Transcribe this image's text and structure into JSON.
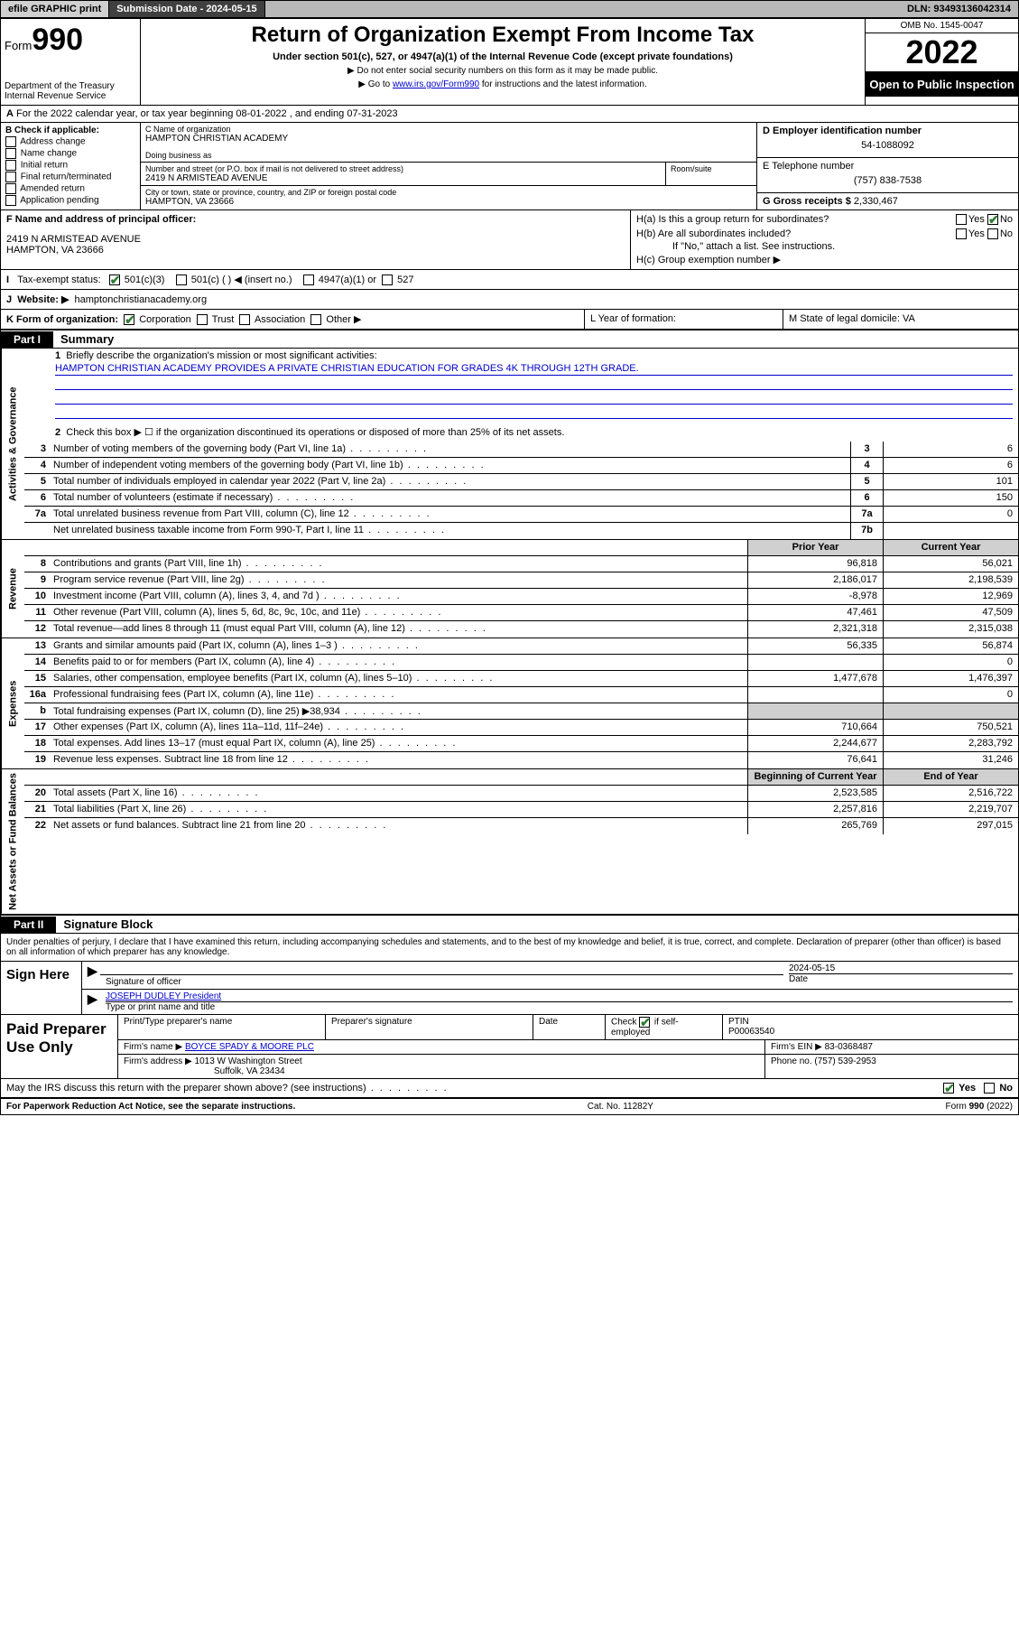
{
  "topbar": {
    "efile": "efile GRAPHIC print",
    "submission_label": "Submission Date - 2024-05-15",
    "dln": "DLN: 93493136042314"
  },
  "header": {
    "form_prefix": "Form",
    "form_number": "990",
    "dept": "Department of the Treasury",
    "irs": "Internal Revenue Service",
    "title": "Return of Organization Exempt From Income Tax",
    "subtitle": "Under section 501(c), 527, or 4947(a)(1) of the Internal Revenue Code (except private foundations)",
    "note1": "▶ Do not enter social security numbers on this form as it may be made public.",
    "note2_pre": "▶ Go to ",
    "note2_link": "www.irs.gov/Form990",
    "note2_post": " for instructions and the latest information.",
    "omb": "OMB No. 1545-0047",
    "tax_year": "2022",
    "open": "Open to Public Inspection"
  },
  "line_a": "For the 2022 calendar year, or tax year beginning 08-01-2022    , and ending 07-31-2023",
  "col_b": {
    "title": "B Check if applicable:",
    "opts": [
      "Address change",
      "Name change",
      "Initial return",
      "Final return/terminated",
      "Amended return",
      "Application pending"
    ]
  },
  "col_c": {
    "name_label": "C Name of organization",
    "name": "HAMPTON CHRISTIAN ACADEMY",
    "dba_label": "Doing business as",
    "street_label": "Number and street (or P.O. box if mail is not delivered to street address)",
    "room_label": "Room/suite",
    "street": "2419 N ARMISTEAD AVENUE",
    "city_label": "City or town, state or province, country, and ZIP or foreign postal code",
    "city": "HAMPTON, VA  23666"
  },
  "col_d": {
    "ein_label": "D Employer identification number",
    "ein": "54-1088092",
    "phone_label": "E Telephone number",
    "phone": "(757) 838-7538",
    "gross_label": "G Gross receipts $",
    "gross": "2,330,467"
  },
  "section_f": {
    "label": "F  Name and address of principal officer:",
    "addr1": "2419 N ARMISTEAD AVENUE",
    "addr2": "HAMPTON, VA  23666"
  },
  "section_h": {
    "ha": "H(a)  Is this a group return for subordinates?",
    "hb": "H(b)  Are all subordinates included?",
    "hnote": "If \"No,\" attach a list. See instructions.",
    "hc": "H(c)  Group exemption number ▶",
    "yes": "Yes",
    "no": "No"
  },
  "line_i": {
    "label": "Tax-exempt status:",
    "o1": "501(c)(3)",
    "o2": "501(c) (  ) ◀ (insert no.)",
    "o3": "4947(a)(1) or",
    "o4": "527"
  },
  "line_j": {
    "label": "Website: ▶",
    "val": "hamptonchristianacademy.org"
  },
  "line_k": {
    "label": "K Form of organization:",
    "o1": "Corporation",
    "o2": "Trust",
    "o3": "Association",
    "o4": "Other ▶"
  },
  "line_l": "L Year of formation:",
  "line_m": "M State of legal domicile: VA",
  "parts": {
    "p1": "Part I",
    "p1t": "Summary",
    "p2": "Part II",
    "p2t": "Signature Block"
  },
  "vlabels": {
    "gov": "Activities & Governance",
    "rev": "Revenue",
    "exp": "Expenses",
    "net": "Net Assets or Fund Balances"
  },
  "summary": {
    "l1": "Briefly describe the organization's mission or most significant activities:",
    "mission": "HAMPTON CHRISTIAN ACADEMY PROVIDES A PRIVATE CHRISTIAN EDUCATION FOR GRADES 4K THROUGH 12TH GRADE.",
    "l2": "Check this box ▶ ☐  if the organization discontinued its operations or disposed of more than 25% of its net assets.",
    "rows_gov": [
      {
        "n": "3",
        "d": "Number of voting members of the governing body (Part VI, line 1a)",
        "b": "3",
        "v": "6"
      },
      {
        "n": "4",
        "d": "Number of independent voting members of the governing body (Part VI, line 1b)",
        "b": "4",
        "v": "6"
      },
      {
        "n": "5",
        "d": "Total number of individuals employed in calendar year 2022 (Part V, line 2a)",
        "b": "5",
        "v": "101"
      },
      {
        "n": "6",
        "d": "Total number of volunteers (estimate if necessary)",
        "b": "6",
        "v": "150"
      },
      {
        "n": "7a",
        "d": "Total unrelated business revenue from Part VIII, column (C), line 12",
        "b": "7a",
        "v": "0"
      },
      {
        "n": "",
        "d": "Net unrelated business taxable income from Form 990-T, Part I, line 11",
        "b": "7b",
        "v": ""
      }
    ],
    "hdr_prior": "Prior Year",
    "hdr_curr": "Current Year",
    "rows_rev": [
      {
        "n": "8",
        "d": "Contributions and grants (Part VIII, line 1h)",
        "p": "96,818",
        "c": "56,021"
      },
      {
        "n": "9",
        "d": "Program service revenue (Part VIII, line 2g)",
        "p": "2,186,017",
        "c": "2,198,539"
      },
      {
        "n": "10",
        "d": "Investment income (Part VIII, column (A), lines 3, 4, and 7d )",
        "p": "-8,978",
        "c": "12,969"
      },
      {
        "n": "11",
        "d": "Other revenue (Part VIII, column (A), lines 5, 6d, 8c, 9c, 10c, and 11e)",
        "p": "47,461",
        "c": "47,509"
      },
      {
        "n": "12",
        "d": "Total revenue—add lines 8 through 11 (must equal Part VIII, column (A), line 12)",
        "p": "2,321,318",
        "c": "2,315,038"
      }
    ],
    "rows_exp": [
      {
        "n": "13",
        "d": "Grants and similar amounts paid (Part IX, column (A), lines 1–3 )",
        "p": "56,335",
        "c": "56,874"
      },
      {
        "n": "14",
        "d": "Benefits paid to or for members (Part IX, column (A), line 4)",
        "p": "",
        "c": "0"
      },
      {
        "n": "15",
        "d": "Salaries, other compensation, employee benefits (Part IX, column (A), lines 5–10)",
        "p": "1,477,678",
        "c": "1,476,397"
      },
      {
        "n": "16a",
        "d": "Professional fundraising fees (Part IX, column (A), line 11e)",
        "p": "",
        "c": "0"
      },
      {
        "n": "b",
        "d": "Total fundraising expenses (Part IX, column (D), line 25) ▶38,934",
        "p": "grey",
        "c": "grey"
      },
      {
        "n": "17",
        "d": "Other expenses (Part IX, column (A), lines 11a–11d, 11f–24e)",
        "p": "710,664",
        "c": "750,521"
      },
      {
        "n": "18",
        "d": "Total expenses. Add lines 13–17 (must equal Part IX, column (A), line 25)",
        "p": "2,244,677",
        "c": "2,283,792"
      },
      {
        "n": "19",
        "d": "Revenue less expenses. Subtract line 18 from line 12",
        "p": "76,641",
        "c": "31,246"
      }
    ],
    "hdr_beg": "Beginning of Current Year",
    "hdr_end": "End of Year",
    "rows_net": [
      {
        "n": "20",
        "d": "Total assets (Part X, line 16)",
        "p": "2,523,585",
        "c": "2,516,722"
      },
      {
        "n": "21",
        "d": "Total liabilities (Part X, line 26)",
        "p": "2,257,816",
        "c": "2,219,707"
      },
      {
        "n": "22",
        "d": "Net assets or fund balances. Subtract line 21 from line 20",
        "p": "265,769",
        "c": "297,015"
      }
    ]
  },
  "sig": {
    "intro": "Under penalties of perjury, I declare that I have examined this return, including accompanying schedules and statements, and to the best of my knowledge and belief, it is true, correct, and complete. Declaration of preparer (other than officer) is based on all information of which preparer has any knowledge.",
    "sign_here": "Sign Here",
    "sig_officer": "Signature of officer",
    "date": "Date",
    "date_val": "2024-05-15",
    "name": "JOSEPH DUDLEY  President",
    "name_label": "Type or print name and title"
  },
  "prep": {
    "title": "Paid Preparer Use Only",
    "h1": "Print/Type preparer's name",
    "h2": "Preparer's signature",
    "h3": "Date",
    "h4a": "Check",
    "h4b": "if self-employed",
    "h5": "PTIN",
    "ptin": "P00063540",
    "firm_label": "Firm's name    ▶",
    "firm": "BOYCE SPADY & MOORE PLC",
    "ein_label": "Firm's EIN ▶",
    "ein": "83-0368487",
    "addr_label": "Firm's address ▶",
    "addr1": "1013 W Washington Street",
    "addr2": "Suffolk, VA  23434",
    "phone_label": "Phone no.",
    "phone": "(757) 539-2953",
    "discuss": "May the IRS discuss this return with the preparer shown above? (see instructions)"
  },
  "footer": {
    "l": "For Paperwork Reduction Act Notice, see the separate instructions.",
    "m": "Cat. No. 11282Y",
    "r": "Form 990 (2022)"
  }
}
